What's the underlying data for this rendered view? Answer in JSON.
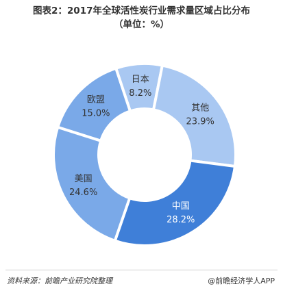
{
  "chart_data": {
    "type": "pie",
    "title_line1": "图表2：2017年全球活性炭行业需求量区域占比分布",
    "title_line2": "（单位：%）",
    "categories": [
      "日本",
      "其他",
      "中国",
      "美国",
      "欧盟"
    ],
    "values": [
      8.2,
      23.9,
      28.2,
      24.6,
      15.0
    ],
    "value_labels": [
      "8.2%",
      "23.9%",
      "28.2%",
      "24.6%",
      "15.0%"
    ],
    "colors": [
      "#a9c8f2",
      "#a9c8f2",
      "#3f7fd8",
      "#7aa9e8",
      "#7aa9e8"
    ]
  },
  "footer": {
    "source": "资料来源：前瞻产业研究院整理",
    "brand": "@前瞻经济学人APP"
  }
}
